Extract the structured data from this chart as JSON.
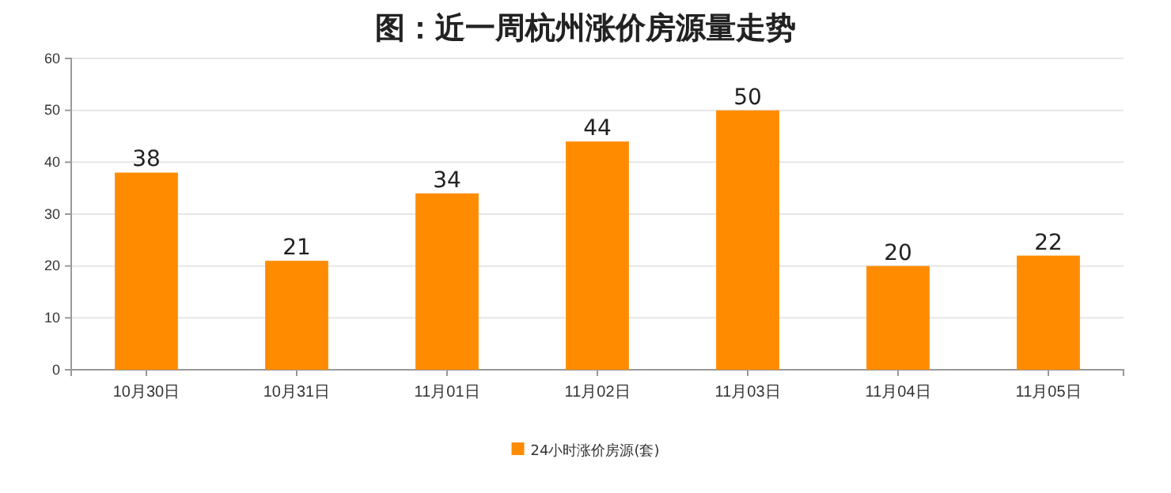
{
  "chart_data": {
    "type": "bar",
    "title": "图：近一周杭州涨价房源量走势",
    "categories": [
      "10月30日",
      "10月31日",
      "11月01日",
      "11月02日",
      "11月03日",
      "11月04日",
      "11月05日"
    ],
    "series": [
      {
        "name": "24小时涨价房源(套)",
        "color": "#ff8c00",
        "values": [
          38,
          21,
          34,
          44,
          50,
          20,
          22
        ]
      }
    ],
    "ylim": [
      0,
      60
    ],
    "yticks": [
      0,
      10,
      20,
      30,
      40,
      50,
      60
    ],
    "grid": "y",
    "legend": "bottom",
    "data_labels": true
  }
}
